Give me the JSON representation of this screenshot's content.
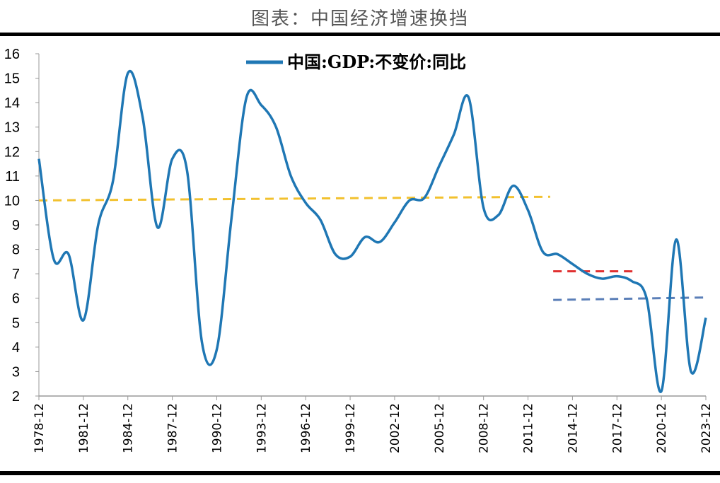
{
  "title": "图表：中国经济增速换挡",
  "chart_data": {
    "type": "line",
    "title": "图表：中国经济增速换挡",
    "xlabel": "",
    "ylabel": "",
    "ylim": [
      2,
      16
    ],
    "yticks": [
      "2",
      "3",
      "4",
      "5",
      "6",
      "7",
      "8",
      "9",
      "10",
      "11",
      "12",
      "13",
      "14",
      "15",
      "16"
    ],
    "xticks": [
      "1978-12",
      "1981-12",
      "1984-12",
      "1987-12",
      "1990-12",
      "1993-12",
      "1996-12",
      "1999-12",
      "2002-12",
      "2005-12",
      "2008-12",
      "2011-12",
      "2014-12",
      "2017-12",
      "2020-12",
      "2023-12"
    ],
    "legend": {
      "position": "top-center",
      "entries": [
        "中国:GDP:不变价:同比"
      ]
    },
    "grid": false,
    "series": [
      {
        "name": "中国:GDP:不变价:同比",
        "color": "#1f77b4",
        "x": [
          1978,
          1979,
          1980,
          1981,
          1982,
          1983,
          1984,
          1985,
          1986,
          1987,
          1988,
          1989,
          1990,
          1991,
          1992,
          1993,
          1994,
          1995,
          1996,
          1997,
          1998,
          1999,
          2000,
          2001,
          2002,
          2003,
          2004,
          2005,
          2006,
          2007,
          2008,
          2009,
          2010,
          2011,
          2012,
          2013,
          2014,
          2015,
          2016,
          2017,
          2018,
          2019,
          2020,
          2021,
          2022,
          2023
        ],
        "values": [
          11.7,
          7.6,
          7.8,
          5.1,
          9.0,
          10.8,
          15.2,
          13.4,
          8.9,
          11.7,
          11.2,
          4.2,
          3.9,
          9.3,
          14.2,
          13.9,
          13.0,
          11.0,
          9.9,
          9.2,
          7.8,
          7.7,
          8.5,
          8.3,
          9.1,
          10.0,
          10.1,
          11.4,
          12.7,
          14.2,
          9.7,
          9.4,
          10.6,
          9.6,
          7.9,
          7.8,
          7.4,
          7.0,
          6.8,
          6.9,
          6.7,
          6.0,
          2.2,
          8.4,
          3.0,
          5.2
        ]
      }
    ],
    "reference_lines": [
      {
        "color": "#f2c12e",
        "style": "dashed",
        "x": [
          1978,
          2012.5
        ],
        "y": [
          10.0,
          10.15
        ]
      },
      {
        "color": "#e03030",
        "style": "dashed",
        "x": [
          2012.7,
          2018.2
        ],
        "y": [
          7.1,
          7.1
        ]
      },
      {
        "color": "#5b7fb8",
        "style": "dashed",
        "x": [
          2012.7,
          2022.85
        ],
        "y": [
          5.93,
          6.03
        ]
      }
    ]
  }
}
